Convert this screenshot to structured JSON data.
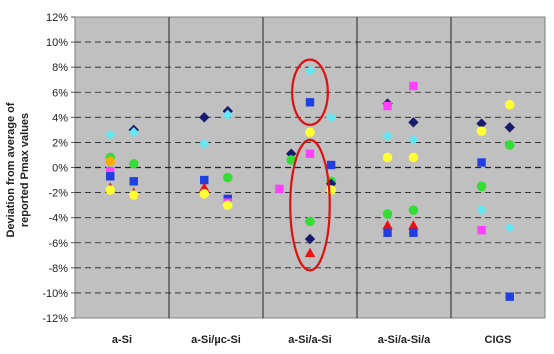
{
  "chart_data": {
    "type": "scatter",
    "title": "",
    "ylabel_line1": "Deviation from average of",
    "ylabel_line2": "reported Pmax values",
    "ylim": [
      -12,
      12
    ],
    "ytick_step": 2,
    "ytick_labels": [
      "-12%",
      "-10%",
      "-8%",
      "-6%",
      "-4%",
      "-2%",
      "0%",
      "2%",
      "4%",
      "6%",
      "8%",
      "10%",
      "12%"
    ],
    "grid": "dashed horizontal",
    "background": "#c0c0c0",
    "categories": [
      "a-Si",
      "a-Si/µc-Si",
      "a-Si/a-Si",
      "a-Si/a-Si/a",
      "CIGS"
    ],
    "colors": {
      "navy": "#1a1a6e",
      "blue": "#1f3fe0",
      "cyan": "#66e6f0",
      "magenta": "#ff40ff",
      "yellow": "#ffff33",
      "green": "#33dd33",
      "red": "#ee1111",
      "orange": "#ffaa00"
    },
    "points": [
      {
        "cat": 0,
        "dx": -0.25,
        "y": 2.6,
        "shape": "diamond",
        "color": "cyan"
      },
      {
        "cat": 0,
        "dx": -0.25,
        "y": 0.8,
        "shape": "circle",
        "color": "green"
      },
      {
        "cat": 0,
        "dx": -0.25,
        "y": 0.5,
        "shape": "circle",
        "color": "orange"
      },
      {
        "cat": 0,
        "dx": -0.25,
        "y": -0.3,
        "shape": "square",
        "color": "magenta"
      },
      {
        "cat": 0,
        "dx": -0.25,
        "y": -0.7,
        "shape": "square",
        "color": "blue"
      },
      {
        "cat": 0,
        "dx": -0.25,
        "y": -1.6,
        "shape": "triangle",
        "color": "red"
      },
      {
        "cat": 0,
        "dx": -0.25,
        "y": -1.8,
        "shape": "circle",
        "color": "yellow"
      },
      {
        "cat": 0,
        "dx": 0.25,
        "y": 3.0,
        "shape": "diamond",
        "color": "navy"
      },
      {
        "cat": 0,
        "dx": 0.25,
        "y": 2.8,
        "shape": "diamond",
        "color": "cyan"
      },
      {
        "cat": 0,
        "dx": 0.25,
        "y": 0.3,
        "shape": "circle",
        "color": "green"
      },
      {
        "cat": 0,
        "dx": 0.25,
        "y": -1.1,
        "shape": "square",
        "color": "blue"
      },
      {
        "cat": 0,
        "dx": 0.25,
        "y": -2.0,
        "shape": "triangle",
        "color": "red"
      },
      {
        "cat": 0,
        "dx": 0.25,
        "y": -2.2,
        "shape": "circle",
        "color": "yellow"
      },
      {
        "cat": 1,
        "dx": -0.25,
        "y": 4.0,
        "shape": "diamond",
        "color": "navy"
      },
      {
        "cat": 1,
        "dx": -0.25,
        "y": 1.9,
        "shape": "diamond",
        "color": "cyan"
      },
      {
        "cat": 1,
        "dx": -0.25,
        "y": -1.0,
        "shape": "square",
        "color": "blue"
      },
      {
        "cat": 1,
        "dx": -0.25,
        "y": -1.6,
        "shape": "triangle",
        "color": "red"
      },
      {
        "cat": 1,
        "dx": -0.25,
        "y": -2.1,
        "shape": "circle",
        "color": "yellow"
      },
      {
        "cat": 1,
        "dx": 0.25,
        "y": 4.5,
        "shape": "diamond",
        "color": "navy"
      },
      {
        "cat": 1,
        "dx": 0.25,
        "y": 4.2,
        "shape": "diamond",
        "color": "cyan"
      },
      {
        "cat": 1,
        "dx": 0.25,
        "y": -0.8,
        "shape": "circle",
        "color": "green"
      },
      {
        "cat": 1,
        "dx": 0.25,
        "y": -2.5,
        "shape": "square",
        "color": "blue"
      },
      {
        "cat": 1,
        "dx": 0.25,
        "y": -2.8,
        "shape": "square",
        "color": "magenta"
      },
      {
        "cat": 1,
        "dx": 0.25,
        "y": -3.0,
        "shape": "circle",
        "color": "yellow"
      },
      {
        "cat": 2,
        "dx": -0.4,
        "y": 1.1,
        "shape": "diamond",
        "color": "navy"
      },
      {
        "cat": 2,
        "dx": -0.4,
        "y": 0.6,
        "shape": "circle",
        "color": "green"
      },
      {
        "cat": 2,
        "dx": -0.65,
        "y": -1.7,
        "shape": "square",
        "color": "magenta"
      },
      {
        "cat": 2,
        "dx": 0.0,
        "y": 7.7,
        "shape": "diamond",
        "color": "cyan"
      },
      {
        "cat": 2,
        "dx": 0.0,
        "y": 5.2,
        "shape": "square",
        "color": "blue"
      },
      {
        "cat": 2,
        "dx": 0.0,
        "y": 2.8,
        "shape": "circle",
        "color": "yellow"
      },
      {
        "cat": 2,
        "dx": 0.0,
        "y": 1.1,
        "shape": "square",
        "color": "magenta"
      },
      {
        "cat": 2,
        "dx": 0.0,
        "y": -4.3,
        "shape": "circle",
        "color": "green"
      },
      {
        "cat": 2,
        "dx": 0.0,
        "y": -5.7,
        "shape": "diamond",
        "color": "navy"
      },
      {
        "cat": 2,
        "dx": 0.0,
        "y": -6.8,
        "shape": "triangle",
        "color": "red"
      },
      {
        "cat": 2,
        "dx": 0.45,
        "y": 4.0,
        "shape": "diamond",
        "color": "cyan"
      },
      {
        "cat": 2,
        "dx": 0.45,
        "y": 0.2,
        "shape": "square",
        "color": "blue"
      },
      {
        "cat": 2,
        "dx": 0.45,
        "y": -1.1,
        "shape": "circle",
        "color": "green"
      },
      {
        "cat": 2,
        "dx": 0.45,
        "y": -1.3,
        "shape": "diamond",
        "color": "navy"
      },
      {
        "cat": 2,
        "dx": 0.45,
        "y": -1.8,
        "shape": "circle",
        "color": "yellow"
      },
      {
        "cat": 3,
        "dx": -0.35,
        "y": 5.1,
        "shape": "diamond",
        "color": "navy"
      },
      {
        "cat": 3,
        "dx": -0.35,
        "y": 4.9,
        "shape": "square",
        "color": "magenta"
      },
      {
        "cat": 3,
        "dx": -0.35,
        "y": 2.5,
        "shape": "diamond",
        "color": "cyan"
      },
      {
        "cat": 3,
        "dx": -0.35,
        "y": 0.8,
        "shape": "circle",
        "color": "yellow"
      },
      {
        "cat": 3,
        "dx": -0.35,
        "y": -3.7,
        "shape": "circle",
        "color": "green"
      },
      {
        "cat": 3,
        "dx": -0.35,
        "y": -4.6,
        "shape": "triangle",
        "color": "red"
      },
      {
        "cat": 3,
        "dx": -0.35,
        "y": -5.2,
        "shape": "square",
        "color": "blue"
      },
      {
        "cat": 3,
        "dx": 0.2,
        "y": 6.5,
        "shape": "square",
        "color": "magenta"
      },
      {
        "cat": 3,
        "dx": 0.2,
        "y": 3.6,
        "shape": "diamond",
        "color": "navy"
      },
      {
        "cat": 3,
        "dx": 0.2,
        "y": 2.2,
        "shape": "diamond",
        "color": "cyan"
      },
      {
        "cat": 3,
        "dx": 0.2,
        "y": 0.8,
        "shape": "circle",
        "color": "yellow"
      },
      {
        "cat": 3,
        "dx": 0.2,
        "y": -3.4,
        "shape": "circle",
        "color": "green"
      },
      {
        "cat": 3,
        "dx": 0.2,
        "y": -4.6,
        "shape": "triangle",
        "color": "red"
      },
      {
        "cat": 3,
        "dx": 0.2,
        "y": -5.2,
        "shape": "square",
        "color": "blue"
      },
      {
        "cat": 4,
        "dx": -0.35,
        "y": 3.5,
        "shape": "diamond",
        "color": "navy"
      },
      {
        "cat": 4,
        "dx": -0.35,
        "y": 2.9,
        "shape": "circle",
        "color": "yellow"
      },
      {
        "cat": 4,
        "dx": -0.35,
        "y": 0.4,
        "shape": "square",
        "color": "blue"
      },
      {
        "cat": 4,
        "dx": -0.35,
        "y": -1.5,
        "shape": "circle",
        "color": "green"
      },
      {
        "cat": 4,
        "dx": -0.35,
        "y": -3.4,
        "shape": "diamond",
        "color": "cyan"
      },
      {
        "cat": 4,
        "dx": -0.35,
        "y": -5.0,
        "shape": "square",
        "color": "magenta"
      },
      {
        "cat": 4,
        "dx": 0.25,
        "y": 5.0,
        "shape": "circle",
        "color": "yellow"
      },
      {
        "cat": 4,
        "dx": 0.25,
        "y": 3.2,
        "shape": "diamond",
        "color": "navy"
      },
      {
        "cat": 4,
        "dx": 0.25,
        "y": 1.8,
        "shape": "circle",
        "color": "green"
      },
      {
        "cat": 4,
        "dx": 0.25,
        "y": -4.8,
        "shape": "diamond",
        "color": "cyan"
      },
      {
        "cat": 4,
        "dx": 0.25,
        "y": -10.3,
        "shape": "square",
        "color": "blue"
      }
    ],
    "annotations": [
      {
        "type": "ellipse",
        "cat": 2,
        "dx": 0.0,
        "y_center": 6.0,
        "y_half": 2.6,
        "dx_half": 0.38,
        "color": "#dd1111"
      },
      {
        "type": "ellipse",
        "cat": 2,
        "dx": 0.0,
        "y_center": -3.0,
        "y_half": 5.2,
        "dx_half": 0.42,
        "color": "#dd1111"
      }
    ]
  }
}
